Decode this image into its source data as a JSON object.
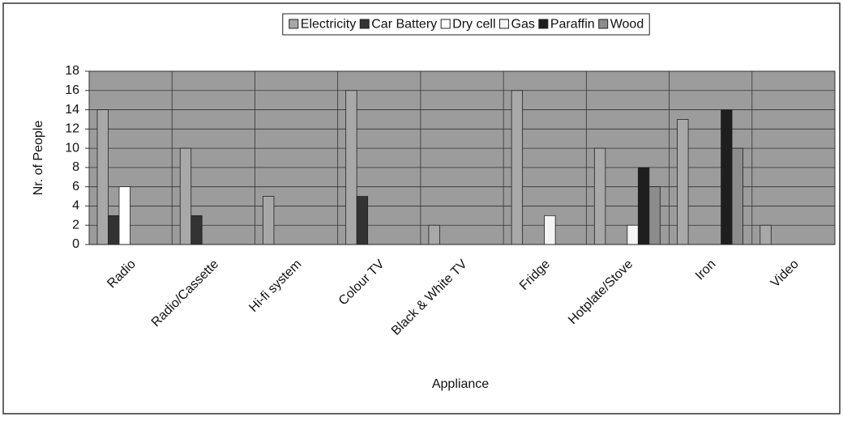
{
  "chart_data": {
    "type": "bar",
    "x_label": "Appliance",
    "y_label": "Nr. of People",
    "categories": [
      "Radio",
      "Radio/Cassette",
      "Hi-fi system",
      "Colour TV",
      "Black & White TV",
      "Fridge",
      "Hotplate/Stove",
      "Iron",
      "Video"
    ],
    "series": [
      {
        "name": "Electricity",
        "color": "#a8a8a8",
        "values": [
          14,
          10,
          5,
          16,
          2,
          16,
          10,
          13,
          2
        ]
      },
      {
        "name": "Car Battery",
        "color": "#333333",
        "values": [
          3,
          3,
          0,
          5,
          0,
          0,
          0,
          0,
          0
        ]
      },
      {
        "name": "Dry cell",
        "color": "#ffffff",
        "values": [
          6,
          0,
          0,
          0,
          0,
          0,
          0,
          0,
          0
        ]
      },
      {
        "name": "Gas",
        "color": "#f4f4f4",
        "values": [
          0,
          0,
          0,
          0,
          0,
          3,
          2,
          0,
          0
        ]
      },
      {
        "name": "Paraffin",
        "color": "#1e1e1e",
        "values": [
          0,
          0,
          0,
          0,
          0,
          0,
          8,
          14,
          0
        ]
      },
      {
        "name": "Wood",
        "color": "#8c8c8c",
        "values": [
          0,
          0,
          0,
          0,
          0,
          0,
          6,
          10,
          0
        ]
      }
    ],
    "ylim": [
      0,
      18
    ],
    "yticks": [
      0,
      2,
      4,
      6,
      8,
      10,
      12,
      14,
      16,
      18
    ],
    "grid": true,
    "legend": "top"
  }
}
